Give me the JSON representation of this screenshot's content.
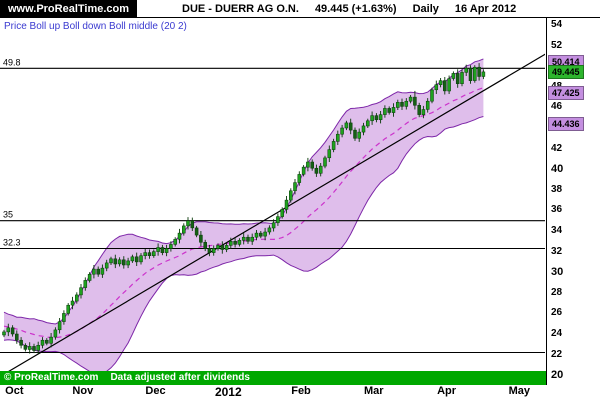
{
  "header": {
    "brand": "www.ProRealTime.com",
    "symbol": "DUE - DUERR AG O.N.",
    "quote": "49.445 (+1.63%)",
    "timeframe": "Daily",
    "date": "16 Apr 2012"
  },
  "indicator_label": "Price Boll up Boll down Boll middle (20 2)",
  "footer": {
    "copyright": "© ProRealTime.com",
    "note": "Data adjusted after dividends"
  },
  "colors": {
    "accent_green": "#00a800",
    "band_fill": "#d9b3e8",
    "band_edge": "#7d26a8",
    "middle_line": "#cc33cc",
    "candle_up": "#1fa21f",
    "candle_down": "#156015",
    "candle_stroke": "#073807",
    "tag_band_bg": "#c48fe0",
    "tag_price_bg": "#2db52d",
    "legend_text": "#3a3ad0",
    "trend_line": "#000000",
    "level_line": "#000000"
  },
  "chart_data": {
    "type": "candlestick",
    "title": "DUE - DUERR AG O.N. Daily",
    "instrument": "DUE - DUERR AG O.N.",
    "timeframe": "Daily",
    "as_of": "16 Apr 2012",
    "last_price": 49.445,
    "change_percent": 1.63,
    "ylim": [
      20,
      54
    ],
    "y_ticks": [
      54,
      52,
      50,
      48,
      46,
      44,
      42,
      40,
      38,
      36,
      34,
      32,
      30,
      28,
      26,
      24,
      22,
      20
    ],
    "x_months": [
      {
        "label": "Oct",
        "index": 1,
        "year": false
      },
      {
        "label": "Nov",
        "index": 17,
        "year": false
      },
      {
        "label": "Dec",
        "index": 34,
        "year": false
      },
      {
        "label": "2012",
        "index": 51,
        "year": true
      },
      {
        "label": "Feb",
        "index": 68,
        "year": false
      },
      {
        "label": "Mar",
        "index": 85,
        "year": false
      },
      {
        "label": "Apr",
        "index": 102,
        "year": false
      },
      {
        "label": "May",
        "index": 119,
        "year": false
      }
    ],
    "levels": [
      {
        "price": 49.8,
        "label": "49.8"
      },
      {
        "price": 35.0,
        "label": "35"
      },
      {
        "price": 32.3,
        "label": "32.3"
      },
      {
        "price": 22.2,
        "label": ""
      }
    ],
    "trendline": {
      "start_index": 0,
      "start_price": 20.1,
      "end_index": 127,
      "end_price": 51.3
    },
    "bollinger": {
      "period": 20,
      "deviations": 2,
      "last_upper": 50.414,
      "last_middle": 47.425,
      "last_lower": 44.436
    },
    "axis_tags": [
      {
        "label": "50.414",
        "price": 50.414,
        "kind": "band"
      },
      {
        "label": "49.445",
        "price": 49.445,
        "kind": "last"
      },
      {
        "label": "47.425",
        "price": 47.425,
        "kind": "band"
      },
      {
        "label": "44.436",
        "price": 44.436,
        "kind": "band"
      }
    ],
    "pre_closes": [
      26.0,
      25.6,
      25.9,
      25.4,
      25.7,
      25.2,
      24.8,
      25.1,
      24.6,
      24.9,
      24.4,
      24.7,
      24.2,
      24.5,
      24.0,
      24.3,
      23.8,
      24.1,
      23.7
    ],
    "candles": [
      [
        23.9,
        24.4,
        23.7,
        24.2
      ],
      [
        24.2,
        25.0,
        23.8,
        24.6
      ],
      [
        24.6,
        24.85,
        23.75,
        24.0
      ],
      [
        24.0,
        24.35,
        23.05,
        23.4
      ],
      [
        23.4,
        23.7,
        22.6,
        22.9
      ],
      [
        22.9,
        23.1,
        22.3,
        22.5
      ],
      [
        22.5,
        23.2,
        22.1,
        22.8
      ],
      [
        22.8,
        23.05,
        22.15,
        22.4
      ],
      [
        22.4,
        23.25,
        22.05,
        22.9
      ],
      [
        22.9,
        23.7,
        22.6,
        23.4
      ],
      [
        23.4,
        23.6,
        22.9,
        23.1
      ],
      [
        23.1,
        24.1,
        22.7,
        23.7
      ],
      [
        23.7,
        24.65,
        23.45,
        24.4
      ],
      [
        24.4,
        25.55,
        24.05,
        25.2
      ],
      [
        25.2,
        26.3,
        24.9,
        26.0
      ],
      [
        26.0,
        27.0,
        25.8,
        26.8
      ],
      [
        26.8,
        27.6,
        26.4,
        27.2
      ],
      [
        27.2,
        28.05,
        26.95,
        27.8
      ],
      [
        27.8,
        28.85,
        27.45,
        28.5
      ],
      [
        28.5,
        29.5,
        28.2,
        29.2
      ],
      [
        29.2,
        30.0,
        29.0,
        29.8
      ],
      [
        29.8,
        30.7,
        29.4,
        30.3
      ],
      [
        30.3,
        30.55,
        29.55,
        29.8
      ],
      [
        29.8,
        30.75,
        29.45,
        30.4
      ],
      [
        30.4,
        31.2,
        30.1,
        30.9
      ],
      [
        30.9,
        31.5,
        30.7,
        31.3
      ],
      [
        31.3,
        31.7,
        30.4,
        30.8
      ],
      [
        30.8,
        31.45,
        30.55,
        31.2
      ],
      [
        31.2,
        31.55,
        30.35,
        30.7
      ],
      [
        30.7,
        31.4,
        30.4,
        31.1
      ],
      [
        31.1,
        31.7,
        30.9,
        31.5
      ],
      [
        31.5,
        31.9,
        30.6,
        31.0
      ],
      [
        31.0,
        31.85,
        30.75,
        31.6
      ],
      [
        31.6,
        32.25,
        31.25,
        31.9
      ],
      [
        31.9,
        32.2,
        31.3,
        31.6
      ],
      [
        31.6,
        32.2,
        31.4,
        32.0
      ],
      [
        32.0,
        32.8,
        31.6,
        32.4
      ],
      [
        32.4,
        32.65,
        31.65,
        31.9
      ],
      [
        31.9,
        32.65,
        31.55,
        32.3
      ],
      [
        32.3,
        33.0,
        32.0,
        32.7
      ],
      [
        32.7,
        33.4,
        32.5,
        33.2
      ],
      [
        33.2,
        34.2,
        32.8,
        33.8
      ],
      [
        33.8,
        34.75,
        33.55,
        34.5
      ],
      [
        34.5,
        35.35,
        34.15,
        35.0
      ],
      [
        35.0,
        35.3,
        34.0,
        34.3
      ],
      [
        34.3,
        34.5,
        33.4,
        33.6
      ],
      [
        33.6,
        34.0,
        32.5,
        32.9
      ],
      [
        32.9,
        33.15,
        32.05,
        32.3
      ],
      [
        32.3,
        32.65,
        31.55,
        31.9
      ],
      [
        31.9,
        32.6,
        31.6,
        32.3
      ],
      [
        32.3,
        32.8,
        32.1,
        32.6
      ],
      [
        32.6,
        33.0,
        31.8,
        32.2
      ],
      [
        32.2,
        32.85,
        31.95,
        32.6
      ],
      [
        32.6,
        33.35,
        32.25,
        33.0
      ],
      [
        33.0,
        33.3,
        32.4,
        32.7
      ],
      [
        32.7,
        33.3,
        32.5,
        33.1
      ],
      [
        33.1,
        33.8,
        32.7,
        33.4
      ],
      [
        33.4,
        33.65,
        32.75,
        33.0
      ],
      [
        33.0,
        33.75,
        32.65,
        33.4
      ],
      [
        33.4,
        34.1,
        33.1,
        33.8
      ],
      [
        33.8,
        34.0,
        33.3,
        33.5
      ],
      [
        33.5,
        34.3,
        33.1,
        33.9
      ],
      [
        33.9,
        34.55,
        33.65,
        34.3
      ],
      [
        34.3,
        35.15,
        33.95,
        34.8
      ],
      [
        34.8,
        35.7,
        34.5,
        35.4
      ],
      [
        35.4,
        36.3,
        35.2,
        36.1
      ],
      [
        36.1,
        37.4,
        35.7,
        37.0
      ],
      [
        37.0,
        38.15,
        36.75,
        37.9
      ],
      [
        37.9,
        39.05,
        37.55,
        38.7
      ],
      [
        38.7,
        39.8,
        38.4,
        39.5
      ],
      [
        39.5,
        40.4,
        39.3,
        40.2
      ],
      [
        40.2,
        41.1,
        39.8,
        40.7
      ],
      [
        40.7,
        40.95,
        39.85,
        40.1
      ],
      [
        40.1,
        40.45,
        39.25,
        39.6
      ],
      [
        39.6,
        40.6,
        39.3,
        40.3
      ],
      [
        40.3,
        41.3,
        40.1,
        41.1
      ],
      [
        41.1,
        42.3,
        40.7,
        41.9
      ],
      [
        41.9,
        42.95,
        41.65,
        42.7
      ],
      [
        42.7,
        43.75,
        42.35,
        43.4
      ],
      [
        43.4,
        44.3,
        43.1,
        44.0
      ],
      [
        44.0,
        44.7,
        43.8,
        44.5
      ],
      [
        44.5,
        44.9,
        43.4,
        43.8
      ],
      [
        43.8,
        44.05,
        42.75,
        43.0
      ],
      [
        43.0,
        43.95,
        42.65,
        43.6
      ],
      [
        43.6,
        44.5,
        43.3,
        44.2
      ],
      [
        44.2,
        44.9,
        44.0,
        44.7
      ],
      [
        44.7,
        45.6,
        44.3,
        45.2
      ],
      [
        45.2,
        45.45,
        44.55,
        44.8
      ],
      [
        44.8,
        45.65,
        44.45,
        45.3
      ],
      [
        45.3,
        46.2,
        45.0,
        45.9
      ],
      [
        45.9,
        46.1,
        45.3,
        45.5
      ],
      [
        45.5,
        46.4,
        45.1,
        46.0
      ],
      [
        46.0,
        46.75,
        45.75,
        46.5
      ],
      [
        46.5,
        46.85,
        45.75,
        46.1
      ],
      [
        46.1,
        46.9,
        45.8,
        46.6
      ],
      [
        46.6,
        47.2,
        46.4,
        47.0
      ],
      [
        47.0,
        47.6,
        45.8,
        46.2
      ],
      [
        46.2,
        46.45,
        45.05,
        45.3
      ],
      [
        45.3,
        46.15,
        44.95,
        45.8
      ],
      [
        45.8,
        46.9,
        45.5,
        46.6
      ],
      [
        46.6,
        47.9,
        46.4,
        47.7
      ],
      [
        47.7,
        48.6,
        47.3,
        48.2
      ],
      [
        48.2,
        48.85,
        47.95,
        48.6
      ],
      [
        48.6,
        48.95,
        47.25,
        47.6
      ],
      [
        47.6,
        49.1,
        47.3,
        48.8
      ],
      [
        48.8,
        49.5,
        48.6,
        49.3
      ],
      [
        49.3,
        49.7,
        47.9,
        48.3
      ],
      [
        48.3,
        49.65,
        48.05,
        49.4
      ],
      [
        49.4,
        50.15,
        49.05,
        49.8
      ],
      [
        49.8,
        50.1,
        48.3,
        48.6
      ],
      [
        48.6,
        50.1,
        48.4,
        49.9
      ],
      [
        49.9,
        50.3,
        48.6,
        49.0
      ],
      [
        49.0,
        49.7,
        48.75,
        49.445
      ]
    ]
  }
}
